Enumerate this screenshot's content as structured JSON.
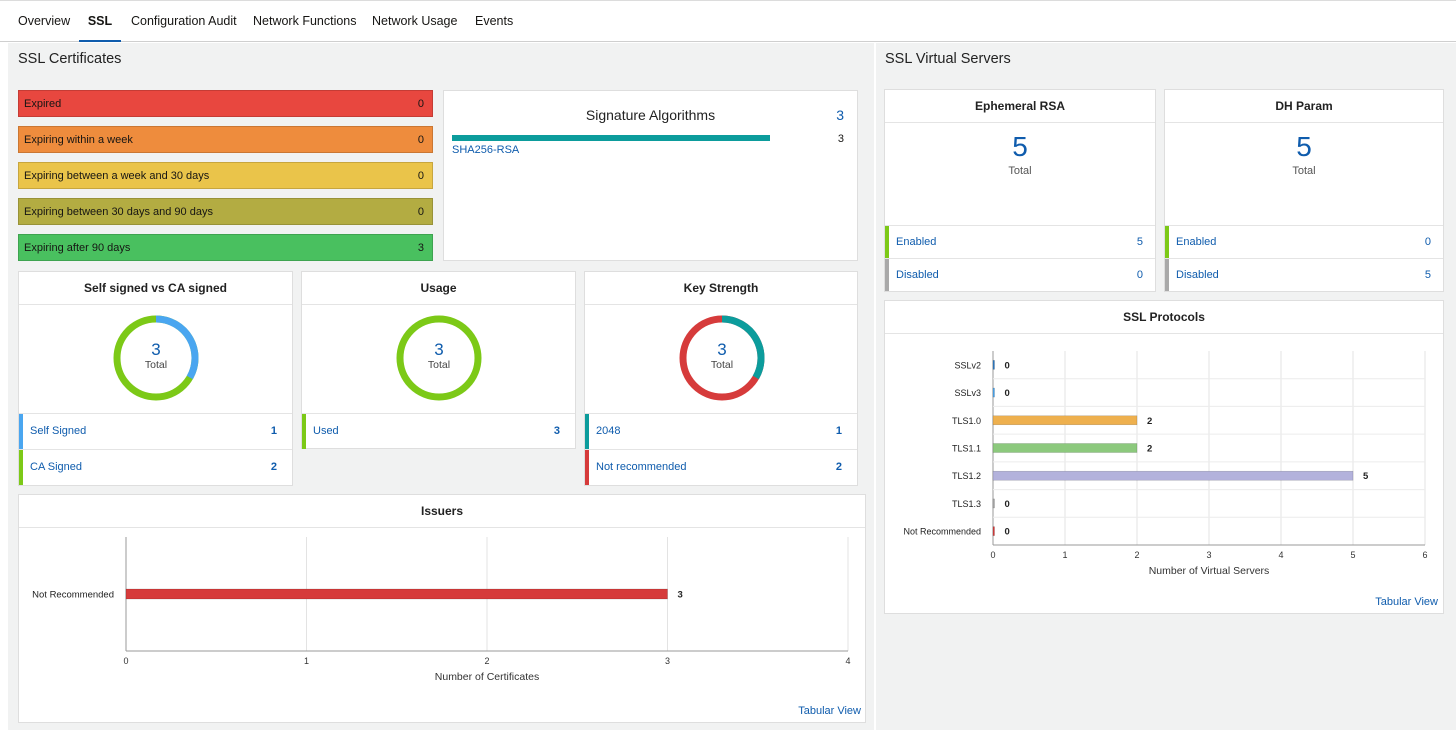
{
  "tabs": [
    {
      "label": "Overview",
      "active": false
    },
    {
      "label": "SSL",
      "active": true
    },
    {
      "label": "Configuration Audit",
      "active": false
    },
    {
      "label": "Network Functions",
      "active": false
    },
    {
      "label": "Network Usage",
      "active": false
    },
    {
      "label": "Events",
      "active": false
    }
  ],
  "ssl_certificates": {
    "title": "SSL Certificates",
    "expiry": [
      {
        "label": "Expired",
        "value": "0",
        "color": "#e8473f"
      },
      {
        "label": "Expiring within a week",
        "value": "0",
        "color": "#ee8c3d"
      },
      {
        "label": "Expiring between a week and 30 days",
        "value": "0",
        "color": "#eac44a"
      },
      {
        "label": "Expiring between 30 days and 90 days",
        "value": "0",
        "color": "#b3ac42"
      },
      {
        "label": "Expiring after 90 days",
        "value": "3",
        "color": "#49c05f"
      }
    ],
    "signature": {
      "title": "Signature Algorithms",
      "count": "3",
      "items": [
        {
          "label": "SHA256-RSA",
          "value": "3",
          "color": "#0c9c9c"
        }
      ]
    },
    "self_vs_ca": {
      "title": "Self signed vs CA signed",
      "total": "3",
      "total_label": "Total",
      "rows": [
        {
          "label": "Self Signed",
          "value": "1",
          "color": "#4aa6f0"
        },
        {
          "label": "CA Signed",
          "value": "2",
          "color": "#7cc917"
        }
      ]
    },
    "usage": {
      "title": "Usage",
      "total": "3",
      "total_label": "Total",
      "rows": [
        {
          "label": "Used",
          "value": "3",
          "color": "#7cc917"
        }
      ]
    },
    "key_strength": {
      "title": "Key Strength",
      "total": "3",
      "total_label": "Total",
      "rows": [
        {
          "label": "2048",
          "value": "1",
          "color": "#0c9c9c"
        },
        {
          "label": "Not recommended",
          "value": "2",
          "color": "#d63b3b"
        }
      ]
    },
    "issuers": {
      "title": "Issuers",
      "tabular_view": "Tabular View"
    }
  },
  "ssl_virtual_servers": {
    "title": "SSL Virtual Servers",
    "ephemeral_rsa": {
      "title": "Ephemeral RSA",
      "total": "5",
      "total_label": "Total",
      "rows": [
        {
          "label": "Enabled",
          "value": "5",
          "color": "#7cc917"
        },
        {
          "label": "Disabled",
          "value": "0",
          "color": "#a9a9a9"
        }
      ]
    },
    "dh_param": {
      "title": "DH Param",
      "total": "5",
      "total_label": "Total",
      "rows": [
        {
          "label": "Enabled",
          "value": "0",
          "color": "#7cc917"
        },
        {
          "label": "Disabled",
          "value": "5",
          "color": "#a9a9a9"
        }
      ]
    },
    "protocols": {
      "title": "SSL Protocols",
      "tabular_view": "Tabular View"
    }
  },
  "chart_data": [
    {
      "id": "issuers",
      "type": "bar",
      "orientation": "horizontal",
      "title": "Issuers",
      "categories": [
        "Not Recommended"
      ],
      "values": [
        3
      ],
      "colors": [
        "#d63b3b"
      ],
      "xlabel": "Number of Certificates",
      "ylabel": "",
      "xlim": [
        0,
        4
      ],
      "xticks": [
        0,
        1,
        2,
        3,
        4
      ],
      "grid": true
    },
    {
      "id": "protocols",
      "type": "bar",
      "orientation": "horizontal",
      "title": "SSL Protocols",
      "categories": [
        "SSLv2",
        "SSLv3",
        "TLS1.0",
        "TLS1.1",
        "TLS1.2",
        "TLS1.3",
        "Not Recommended"
      ],
      "values": [
        0,
        0,
        2,
        2,
        5,
        0,
        0
      ],
      "colors": [
        "#2e7bc4",
        "#4aa6f0",
        "#eeb04e",
        "#8cc97d",
        "#b3b2dc",
        "#aaaaaa",
        "#d63b3b"
      ],
      "xlabel": "Number of Virtual Servers",
      "ylabel": "",
      "xlim": [
        0,
        6
      ],
      "xticks": [
        0,
        1,
        2,
        3,
        4,
        5,
        6
      ],
      "grid": true
    }
  ]
}
